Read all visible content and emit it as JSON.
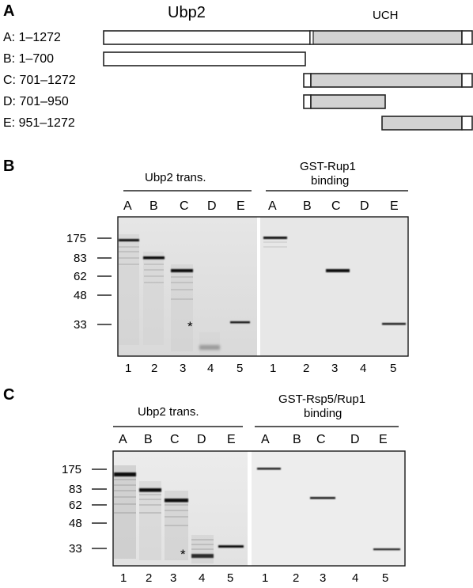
{
  "panel_a": {
    "letter": "A",
    "protein_label": "Ubp2",
    "domain_label": "UCH",
    "constructs": [
      {
        "label": "A: 1–1272",
        "start": 1,
        "end": 1272
      },
      {
        "label": "B: 1–700",
        "start": 1,
        "end": 700
      },
      {
        "label": "C: 701–1272",
        "start": 701,
        "end": 1272
      },
      {
        "label": "D: 701–950",
        "start": 701,
        "end": 950
      },
      {
        "label": "E: 951–1272",
        "start": 951,
        "end": 1272
      }
    ]
  },
  "panel_b": {
    "letter": "B",
    "left_group": "Ubp2 trans.",
    "right_group_line1": "GST-Rup1",
    "right_group_line2": "binding",
    "lane_letters": [
      "A",
      "B",
      "C",
      "D",
      "E"
    ],
    "lane_numbers": [
      "1",
      "2",
      "3",
      "4",
      "5"
    ],
    "markers": [
      "175",
      "83",
      "62",
      "48",
      "33"
    ],
    "asterisk": "*"
  },
  "panel_c": {
    "letter": "C",
    "left_group": "Ubp2 trans.",
    "right_group_line1": "GST-Rsp5/Rup1",
    "right_group_line2": "binding",
    "lane_letters": [
      "A",
      "B",
      "C",
      "D",
      "E"
    ],
    "lane_numbers": [
      "1",
      "2",
      "3",
      "4",
      "5"
    ],
    "markers": [
      "175",
      "83",
      "62",
      "48",
      "33"
    ],
    "asterisk": "*"
  }
}
